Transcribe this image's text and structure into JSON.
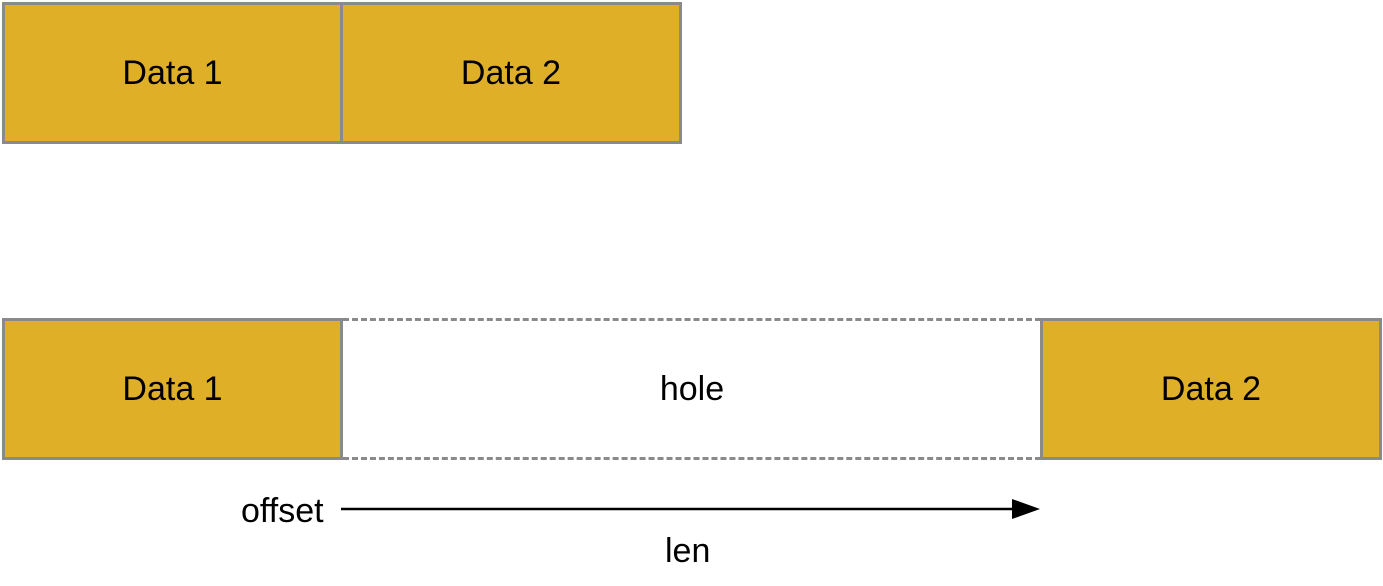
{
  "top_row": {
    "block1": "Data 1",
    "block2": "Data 2"
  },
  "bottom_row": {
    "block1": "Data 1",
    "hole": "hole",
    "block2": "Data 2"
  },
  "annotations": {
    "offset": "offset",
    "len": "len"
  },
  "colors": {
    "data_block_fill": "#dfaf28",
    "border": "#8a8a8a",
    "arrow": "#000000"
  }
}
